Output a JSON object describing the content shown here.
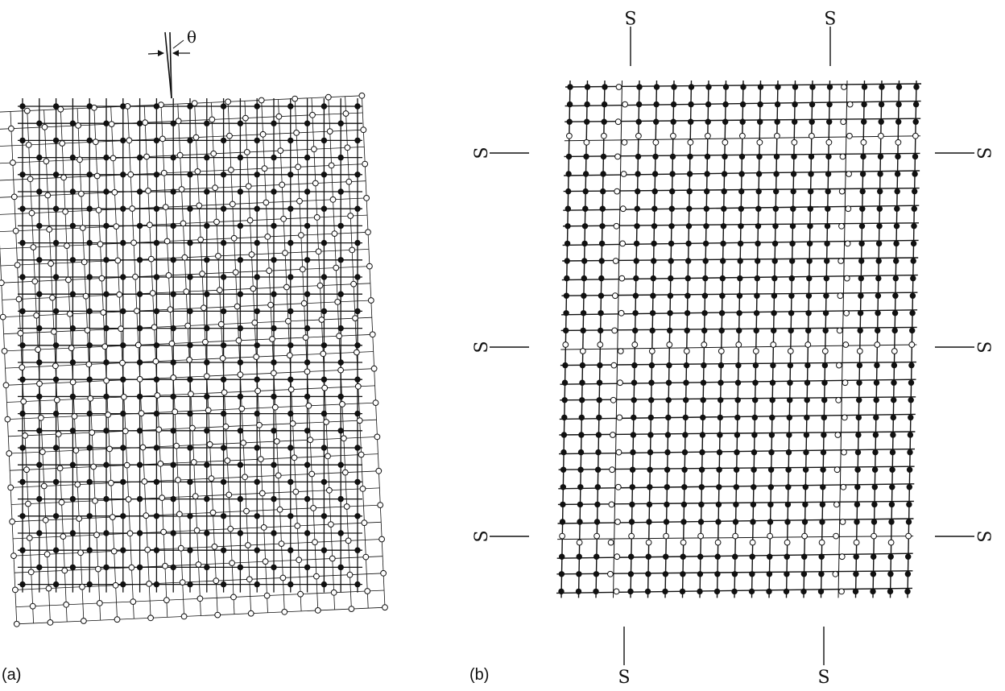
{
  "figure": {
    "panel_a": {
      "label": "(a)",
      "angle_symbol": "θ",
      "atom_legend": {
        "filled": "solid atom",
        "open": "hollow atom"
      }
    },
    "panel_b": {
      "label": "(b)",
      "boundary_marker": "S",
      "marker_count": 10
    },
    "colors": {
      "ink": "#111111",
      "open_fill": "#ffffff",
      "background": "#ffffff"
    }
  }
}
